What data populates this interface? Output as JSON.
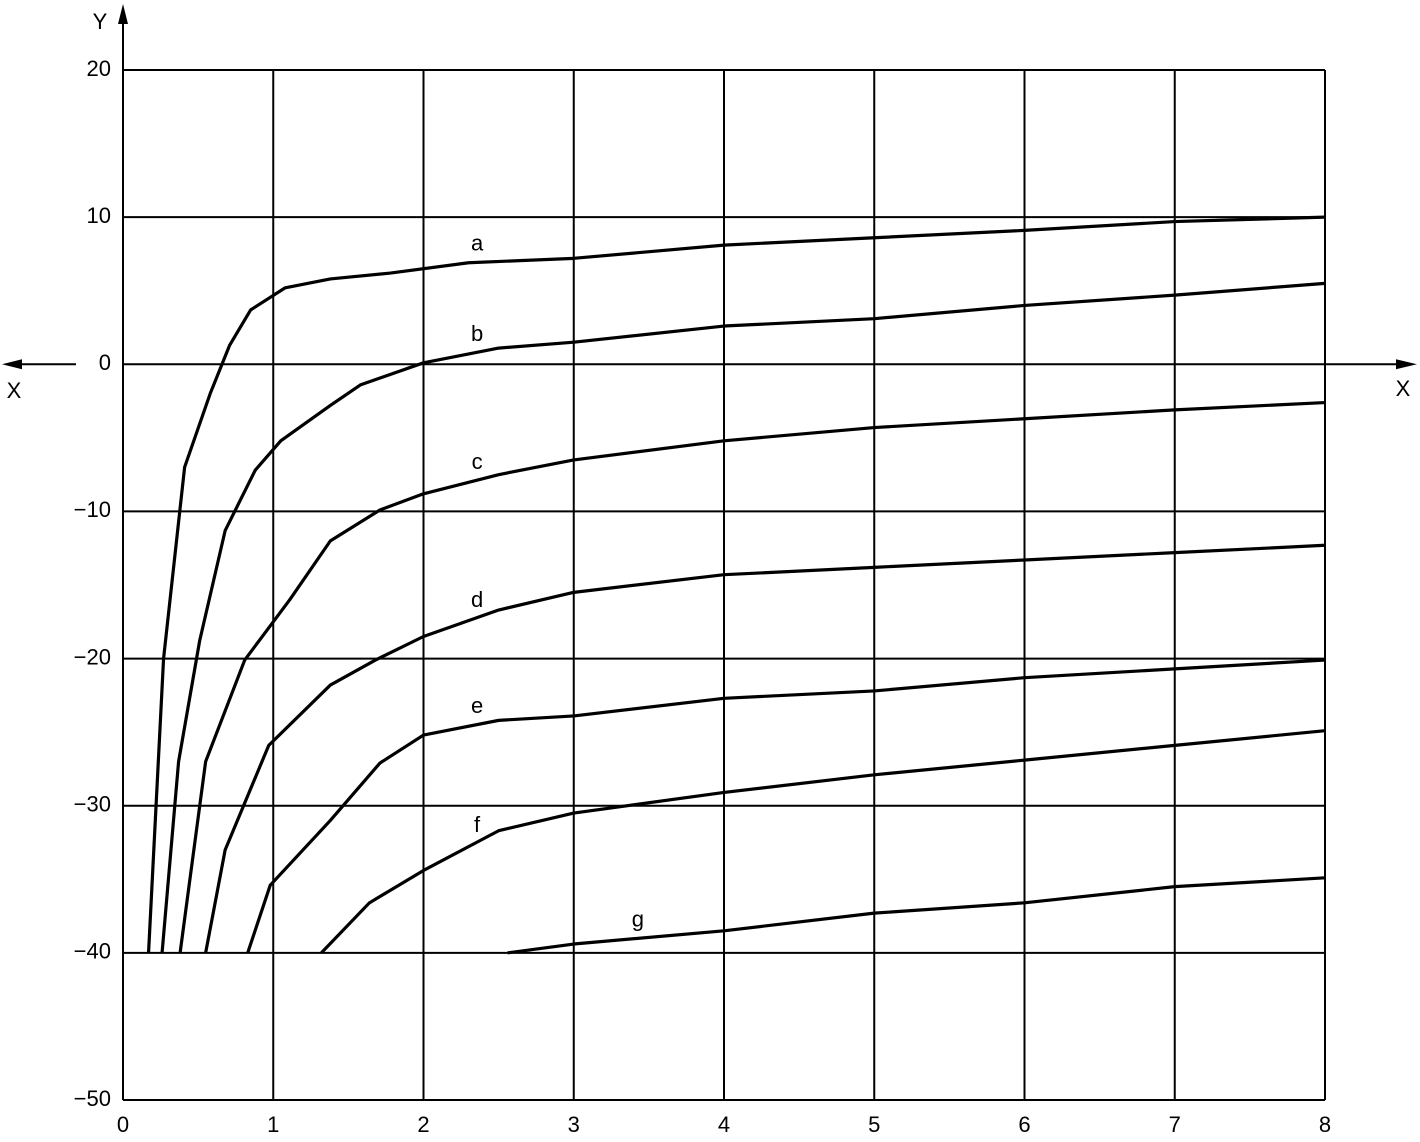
{
  "chart_data": {
    "type": "line",
    "x_label": "X",
    "y_label": "Y",
    "xlim": [
      0,
      8
    ],
    "ylim": [
      -50,
      20
    ],
    "xticks": [
      0,
      1,
      2,
      3,
      4,
      5,
      6,
      7,
      8
    ],
    "yticks": [
      20,
      10,
      0,
      {
        "value": -10,
        "label": "−10"
      },
      {
        "value": -20,
        "label": "−20"
      },
      {
        "value": -30,
        "label": "−30"
      },
      {
        "value": -40,
        "label": "−40"
      },
      {
        "value": -50,
        "label": "−50"
      }
    ],
    "grid": true,
    "color": "#000000",
    "series": [
      {
        "name": "a",
        "x": [
          0.17,
          0.27,
          0.41,
          0.58,
          0.71,
          0.85,
          1.08,
          1.38,
          1.78,
          2.3,
          3,
          4,
          5,
          6,
          7,
          8
        ],
        "values": [
          -40,
          -20,
          -7,
          -2,
          1.3,
          3.7,
          5.2,
          5.8,
          6.2,
          6.9,
          7.2,
          8.1,
          8.6,
          9.1,
          9.7,
          10
        ]
      },
      {
        "name": "b",
        "x": [
          0.26,
          0.37,
          0.51,
          0.68,
          0.88,
          1.05,
          1.38,
          1.58,
          2,
          2.5,
          3,
          4,
          5,
          6,
          7,
          8
        ],
        "values": [
          -40,
          -27,
          -18.8,
          -11.3,
          -7.2,
          -5.2,
          -2.8,
          -1.4,
          0.1,
          1.1,
          1.5,
          2.6,
          3.1,
          4,
          4.7,
          5.5
        ]
      },
      {
        "name": "c",
        "x": [
          0.38,
          0.55,
          0.81,
          1.11,
          1.38,
          1.71,
          2,
          2.5,
          3,
          4,
          5,
          6,
          7,
          8
        ],
        "values": [
          -40,
          -27,
          -20.1,
          -16,
          -12,
          -9.9,
          -8.8,
          -7.5,
          -6.5,
          -5.2,
          -4.3,
          -3.7,
          -3.1,
          -2.6
        ]
      },
      {
        "name": "d",
        "x": [
          0.55,
          0.68,
          0.97,
          1.38,
          1.68,
          2,
          2.5,
          3,
          4,
          5,
          6,
          7,
          8
        ],
        "values": [
          -40,
          -33,
          -25.9,
          -21.8,
          -20.1,
          -18.5,
          -16.7,
          -15.5,
          -14.3,
          -13.8,
          -13.3,
          -12.8,
          -12.3
        ]
      },
      {
        "name": "e",
        "x": [
          0.83,
          0.98,
          1.38,
          1.71,
          2,
          2.5,
          3,
          4,
          5,
          6,
          7,
          8
        ],
        "values": [
          -40,
          -35.4,
          -31,
          -27.1,
          -25.2,
          -24.2,
          -23.9,
          -22.7,
          -22.2,
          -21.3,
          -20.7,
          -20.1
        ]
      },
      {
        "name": "f",
        "x": [
          1.32,
          1.64,
          2,
          2.5,
          3,
          4,
          5,
          6,
          7,
          8
        ],
        "values": [
          -40,
          -36.6,
          -34.4,
          -31.7,
          -30.5,
          -29.1,
          -27.9,
          -26.9,
          -25.9,
          -24.9
        ]
      },
      {
        "name": "g",
        "x": [
          2.56,
          3,
          4,
          5,
          6,
          7,
          8
        ],
        "values": [
          -40,
          -39.4,
          -38.5,
          -37.3,
          -36.6,
          -35.5,
          -34.9
        ]
      }
    ]
  }
}
